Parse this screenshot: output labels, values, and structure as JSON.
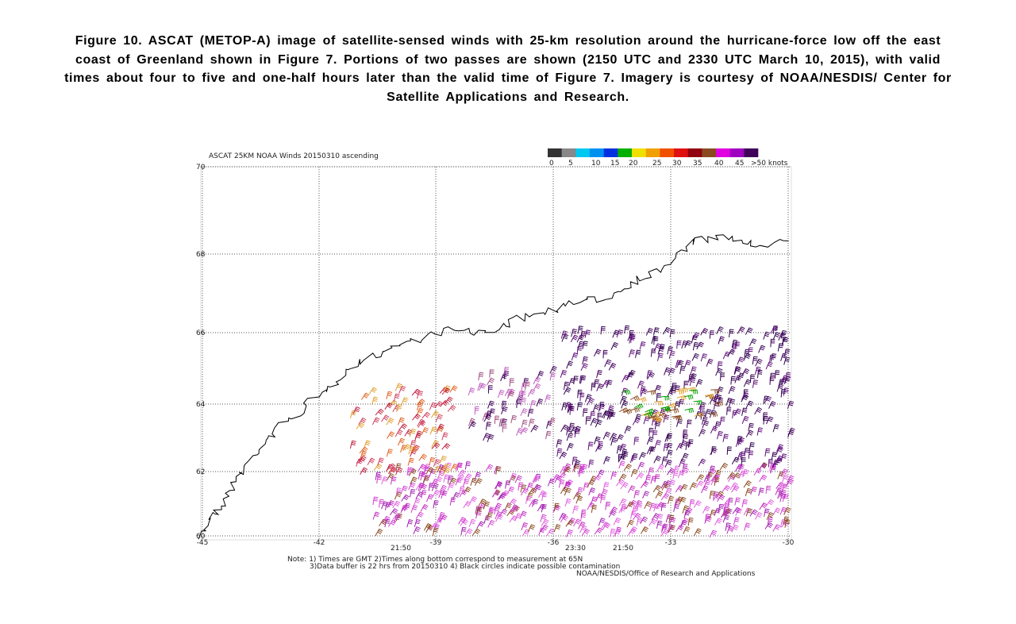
{
  "caption": "Figure 10.  ASCAT (METOP-A) image of satellite-sensed winds with 25-km resolution around the hurricane-force low off the east coast of Greenland shown in Figure 7.  Portions of two passes are shown (2150 UTC and 2330 UTC March 10, 2015), with valid times about four to five and one-half hours later than the valid time of Figure 7. Imagery is courtesy of NOAA/NESDIS/ Center for Satellite Applications and Research.",
  "figure": {
    "title": "ASCAT 25KM NOAA Winds 20150310 ascending",
    "lat_labels": [
      "70",
      "68",
      "66",
      "64",
      "62",
      "60"
    ],
    "lon_labels": [
      "-45",
      "-42",
      "-39",
      "-36",
      "-33",
      "-30"
    ],
    "colorbar_labels": [
      "0",
      "5",
      "10",
      "15",
      "20",
      "25",
      "30",
      "35",
      "40",
      "45",
      ">50 knots"
    ],
    "time_labels": [
      "21:50",
      "23:30",
      "21:50"
    ],
    "notes": [
      "Note: 1) Times are GMT 2)Times along bottom correspond to measurement at 65N",
      "3)Data buffer is 22 hrs from 20150310 4) Black circles indicate possible contamination",
      "NOAA/NESDIS/Office of Research and Applications"
    ]
  }
}
